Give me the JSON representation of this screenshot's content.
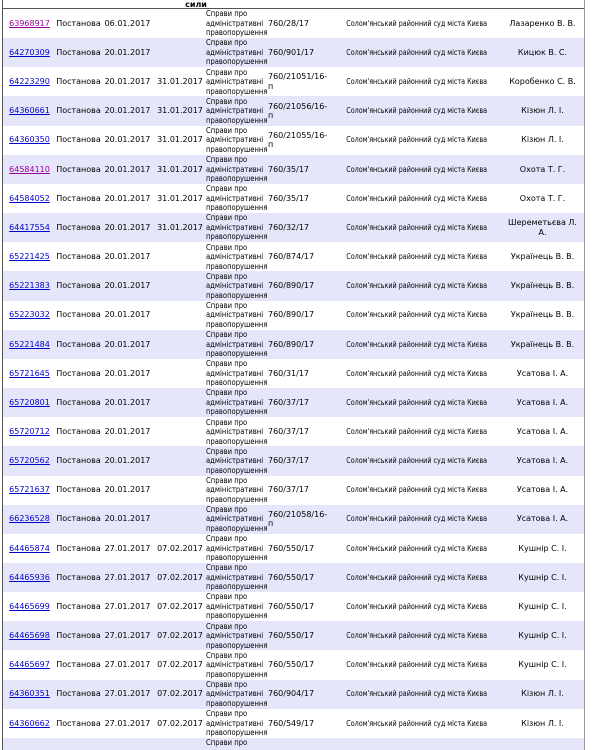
{
  "header": {
    "partial_label": "сили"
  },
  "colors": {
    "stripe": "#E6E6FA",
    "link": "#0000CC",
    "link_visited": "#990099",
    "border_dark": "#555555",
    "border_light": "#999999"
  },
  "table": {
    "rows": [
      {
        "id": "63968917",
        "visited": true,
        "type": "Постанова",
        "date1": "06.01.2017",
        "date2": "",
        "category": "Справи про адміністративні правопорушення",
        "case": "760/28/17",
        "court": "Солом'янський районний суд міста Києва",
        "judge": "Лазаренко В. В."
      },
      {
        "id": "64270309",
        "visited": false,
        "type": "Постанова",
        "date1": "20.01.2017",
        "date2": "",
        "category": "Справи про адміністративні правопорушення",
        "case": "760/901/17",
        "court": "Солом'янський районний суд міста Києва",
        "judge": "Кицюк В. С."
      },
      {
        "id": "64223290",
        "visited": false,
        "type": "Постанова",
        "date1": "20.01.2017",
        "date2": "31.01.2017",
        "category": "Справи про адміністративні правопорушення",
        "case": "760/21051/16-п",
        "court": "Солом'янський районний суд міста Києва",
        "judge": "Коробенко С. В."
      },
      {
        "id": "64360661",
        "visited": false,
        "type": "Постанова",
        "date1": "20.01.2017",
        "date2": "31.01.2017",
        "category": "Справи про адміністративні правопорушення",
        "case": "760/21056/16-п",
        "court": "Солом'янський районний суд міста Києва",
        "judge": "Кізюн Л. І."
      },
      {
        "id": "64360350",
        "visited": false,
        "type": "Постанова",
        "date1": "20.01.2017",
        "date2": "31.01.2017",
        "category": "Справи про адміністративні правопорушення",
        "case": "760/21055/16-п",
        "court": "Солом'янський районний суд міста Києва",
        "judge": "Кізюн Л. І."
      },
      {
        "id": "64584110",
        "visited": true,
        "type": "Постанова",
        "date1": "20.01.2017",
        "date2": "31.01.2017",
        "category": "Справи про адміністративні правопорушення",
        "case": "760/35/17",
        "court": "Солом'янський районний суд міста Києва",
        "judge": "Охота Т. Г."
      },
      {
        "id": "64584052",
        "visited": false,
        "type": "Постанова",
        "date1": "20.01.2017",
        "date2": "31.01.2017",
        "category": "Справи про адміністративні правопорушення",
        "case": "760/35/17",
        "court": "Солом'янський районний суд міста Києва",
        "judge": "Охота Т. Г."
      },
      {
        "id": "64417554",
        "visited": false,
        "type": "Постанова",
        "date1": "20.01.2017",
        "date2": "31.01.2017",
        "category": "Справи про адміністративні правопорушення",
        "case": "760/32/17",
        "court": "Солом'янський районний суд міста Києва",
        "judge": "Шереметьєва Л. А."
      },
      {
        "id": "65221425",
        "visited": false,
        "type": "Постанова",
        "date1": "20.01.2017",
        "date2": "",
        "category": "Справи про адміністративні правопорушення",
        "case": "760/874/17",
        "court": "Солом'янський районний суд міста Києва",
        "judge": "Українець В. В."
      },
      {
        "id": "65221383",
        "visited": false,
        "type": "Постанова",
        "date1": "20.01.2017",
        "date2": "",
        "category": "Справи про адміністративні правопорушення",
        "case": "760/890/17",
        "court": "Солом'янський районний суд міста Києва",
        "judge": "Українець В. В."
      },
      {
        "id": "65223032",
        "visited": false,
        "type": "Постанова",
        "date1": "20.01.2017",
        "date2": "",
        "category": "Справи про адміністративні правопорушення",
        "case": "760/890/17",
        "court": "Солом'янський районний суд міста Києва",
        "judge": "Українець В. В."
      },
      {
        "id": "65221484",
        "visited": false,
        "type": "Постанова",
        "date1": "20.01.2017",
        "date2": "",
        "category": "Справи про адміністративні правопорушення",
        "case": "760/890/17",
        "court": "Солом'янський районний суд міста Києва",
        "judge": "Українець В. В."
      },
      {
        "id": "65721645",
        "visited": false,
        "type": "Постанова",
        "date1": "20.01.2017",
        "date2": "",
        "category": "Справи про адміністративні правопорушення",
        "case": "760/31/17",
        "court": "Солом'янський районний суд міста Києва",
        "judge": "Усатова І. А."
      },
      {
        "id": "65720801",
        "visited": false,
        "type": "Постанова",
        "date1": "20.01.2017",
        "date2": "",
        "category": "Справи про адміністративні правопорушення",
        "case": "760/37/17",
        "court": "Солом'янський районний суд міста Києва",
        "judge": "Усатова І. А."
      },
      {
        "id": "65720712",
        "visited": false,
        "type": "Постанова",
        "date1": "20.01.2017",
        "date2": "",
        "category": "Справи про адміністративні правопорушення",
        "case": "760/37/17",
        "court": "Солом'янський районний суд міста Києва",
        "judge": "Усатова І. А."
      },
      {
        "id": "65720562",
        "visited": false,
        "type": "Постанова",
        "date1": "20.01.2017",
        "date2": "",
        "category": "Справи про адміністративні правопорушення",
        "case": "760/37/17",
        "court": "Солом'янський районний суд міста Києва",
        "judge": "Усатова І. А."
      },
      {
        "id": "65721637",
        "visited": false,
        "type": "Постанова",
        "date1": "20.01.2017",
        "date2": "",
        "category": "Справи про адміністративні правопорушення",
        "case": "760/37/17",
        "court": "Солом'янський районний суд міста Києва",
        "judge": "Усатова І. А."
      },
      {
        "id": "66236528",
        "visited": false,
        "type": "Постанова",
        "date1": "20.01.2017",
        "date2": "",
        "category": "Справи про адміністративні правопорушення",
        "case": "760/21058/16-п",
        "court": "Солом'янський районний суд міста Києва",
        "judge": "Усатова І. А."
      },
      {
        "id": "64465874",
        "visited": false,
        "type": "Постанова",
        "date1": "27.01.2017",
        "date2": "07.02.2017",
        "category": "Справи про адміністративні правопорушення",
        "case": "760/550/17",
        "court": "Солом'янський районний суд міста Києва",
        "judge": "Кушнір С. І."
      },
      {
        "id": "64465936",
        "visited": false,
        "type": "Постанова",
        "date1": "27.01.2017",
        "date2": "07.02.2017",
        "category": "Справи про адміністративні правопорушення",
        "case": "760/550/17",
        "court": "Солом'янський районний суд міста Києва",
        "judge": "Кушнір С. І."
      },
      {
        "id": "64465699",
        "visited": false,
        "type": "Постанова",
        "date1": "27.01.2017",
        "date2": "07.02.2017",
        "category": "Справи про адміністративні правопорушення",
        "case": "760/550/17",
        "court": "Солом'янський районний суд міста Києва",
        "judge": "Кушнір С. І."
      },
      {
        "id": "64465698",
        "visited": false,
        "type": "Постанова",
        "date1": "27.01.2017",
        "date2": "07.02.2017",
        "category": "Справи про адміністративні правопорушення",
        "case": "760/550/17",
        "court": "Солом'янський районний суд міста Києва",
        "judge": "Кушнір С. І."
      },
      {
        "id": "64465697",
        "visited": false,
        "type": "Постанова",
        "date1": "27.01.2017",
        "date2": "07.02.2017",
        "category": "Справи про адміністративні правопорушення",
        "case": "760/550/17",
        "court": "Солом'янський районний суд міста Києва",
        "judge": "Кушнір С. І."
      },
      {
        "id": "64360351",
        "visited": false,
        "type": "Постанова",
        "date1": "27.01.2017",
        "date2": "07.02.2017",
        "category": "Справи про адміністративні правопорушення",
        "case": "760/904/17",
        "court": "Солом'янський районний суд міста Києва",
        "judge": "Кізюн Л. І."
      },
      {
        "id": "64360662",
        "visited": false,
        "type": "Постанова",
        "date1": "27.01.2017",
        "date2": "07.02.2017",
        "category": "Справи про адміністративні правопорушення",
        "case": "760/549/17",
        "court": "Солом'янський районний суд міста Києва",
        "judge": "Кізюн Л. І."
      },
      {
        "id": "",
        "visited": false,
        "partial": true,
        "type": "",
        "date1": "",
        "date2": "",
        "category": "Справи про",
        "case": "",
        "court": "",
        "judge": ""
      }
    ]
  }
}
